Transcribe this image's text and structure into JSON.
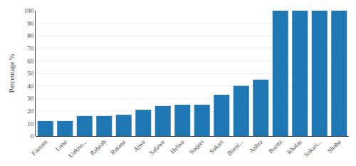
{
  "chart_data": {
    "type": "bar",
    "categories": [
      "Fassam",
      "Lona",
      "Unkno...",
      "Rabeah",
      "Rotana",
      "Ajwa",
      "Safawe",
      "Helwa",
      "Soqeei",
      "Sokari",
      "Burni...",
      "Anbra",
      "Burmi",
      "Khalas",
      "Sokari...",
      "Shoba"
    ],
    "values": [
      12,
      12,
      16,
      16,
      17,
      21,
      24,
      25,
      25,
      33,
      40,
      45,
      100,
      100,
      100,
      100
    ],
    "ylabel": "Percentage %",
    "ylim": [
      0,
      100
    ],
    "yticks": [
      0,
      10,
      20,
      30,
      40,
      50,
      60,
      70,
      80,
      90,
      100
    ],
    "grid": true
  }
}
